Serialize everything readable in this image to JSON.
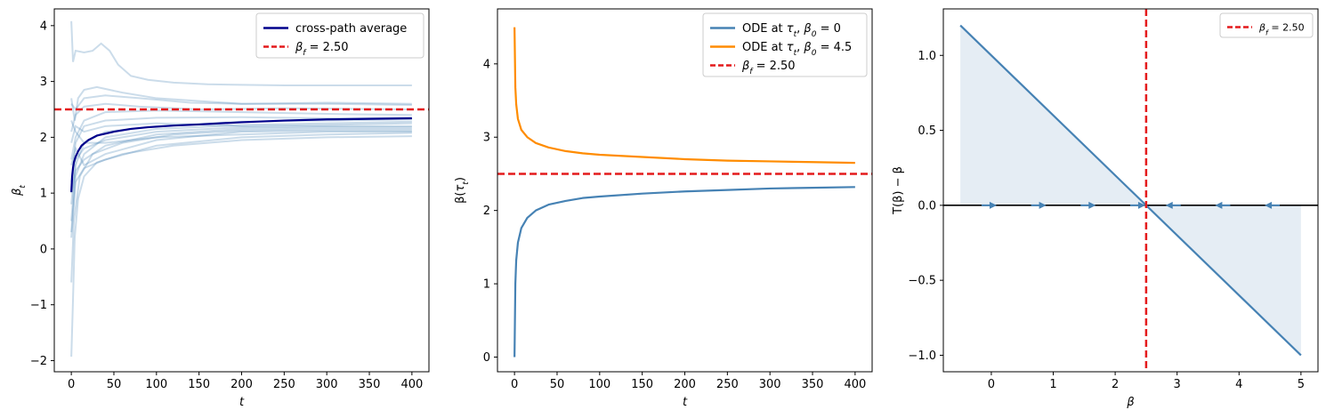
{
  "chart_data": [
    {
      "type": "line",
      "xlabel": "t",
      "ylabel": "β_t",
      "xlim": [
        -20,
        420
      ],
      "ylim": [
        -2.2,
        4.3
      ],
      "xticks": [
        0,
        50,
        100,
        150,
        200,
        250,
        300,
        350,
        400
      ],
      "yticks": [
        -2,
        -1,
        0,
        1,
        2,
        3,
        4
      ],
      "grid": false,
      "legend_position": "top-right",
      "hline": {
        "y": 2.5,
        "label": "β_f = 2.50",
        "color": "#e41a1c",
        "style": "dashed"
      },
      "sample_paths": {
        "color": "#4682b4",
        "paths": [
          [
            [
              0,
              4.08
            ],
            [
              2,
              3.35
            ],
            [
              5,
              3.55
            ],
            [
              15,
              3.52
            ],
            [
              25,
              3.55
            ],
            [
              35,
              3.68
            ],
            [
              45,
              3.55
            ],
            [
              55,
              3.3
            ],
            [
              70,
              3.1
            ],
            [
              90,
              3.03
            ],
            [
              120,
              2.98
            ],
            [
              160,
              2.95
            ],
            [
              200,
              2.94
            ],
            [
              250,
              2.93
            ],
            [
              300,
              2.93
            ],
            [
              350,
              2.93
            ],
            [
              400,
              2.93
            ]
          ],
          [
            [
              0,
              2.7
            ],
            [
              4,
              2.3
            ],
            [
              8,
              2.7
            ],
            [
              15,
              2.85
            ],
            [
              30,
              2.9
            ],
            [
              60,
              2.8
            ],
            [
              100,
              2.7
            ],
            [
              150,
              2.65
            ],
            [
              200,
              2.6
            ],
            [
              300,
              2.6
            ],
            [
              400,
              2.58
            ]
          ],
          [
            [
              0,
              2.6
            ],
            [
              5,
              2.5
            ],
            [
              15,
              2.7
            ],
            [
              40,
              2.75
            ],
            [
              80,
              2.7
            ],
            [
              140,
              2.62
            ],
            [
              200,
              2.6
            ],
            [
              300,
              2.62
            ],
            [
              400,
              2.6
            ]
          ],
          [
            [
              0,
              2.1
            ],
            [
              5,
              2.4
            ],
            [
              15,
              2.55
            ],
            [
              40,
              2.6
            ],
            [
              80,
              2.55
            ],
            [
              150,
              2.5
            ],
            [
              250,
              2.52
            ],
            [
              400,
              2.5
            ]
          ],
          [
            [
              0,
              1.6
            ],
            [
              5,
              2.0
            ],
            [
              15,
              2.3
            ],
            [
              40,
              2.45
            ],
            [
              100,
              2.48
            ],
            [
              200,
              2.45
            ],
            [
              300,
              2.42
            ],
            [
              400,
              2.4
            ]
          ],
          [
            [
              0,
              1.2
            ],
            [
              5,
              1.9
            ],
            [
              15,
              2.2
            ],
            [
              40,
              2.3
            ],
            [
              100,
              2.35
            ],
            [
              200,
              2.36
            ],
            [
              300,
              2.34
            ],
            [
              400,
              2.35
            ]
          ],
          [
            [
              0,
              0.5
            ],
            [
              5,
              1.5
            ],
            [
              15,
              1.9
            ],
            [
              40,
              2.1
            ],
            [
              100,
              2.2
            ],
            [
              200,
              2.28
            ],
            [
              300,
              2.3
            ],
            [
              400,
              2.32
            ]
          ],
          [
            [
              0,
              0.3
            ],
            [
              5,
              1.3
            ],
            [
              15,
              1.7
            ],
            [
              40,
              2.0
            ],
            [
              100,
              2.15
            ],
            [
              200,
              2.22
            ],
            [
              300,
              2.25
            ],
            [
              400,
              2.28
            ]
          ],
          [
            [
              0,
              1.9
            ],
            [
              5,
              2.2
            ],
            [
              15,
              2.1
            ],
            [
              40,
              2.2
            ],
            [
              100,
              2.25
            ],
            [
              200,
              2.2
            ],
            [
              300,
              2.22
            ],
            [
              400,
              2.25
            ]
          ],
          [
            [
              0,
              0.8
            ],
            [
              5,
              1.6
            ],
            [
              15,
              1.8
            ],
            [
              40,
              1.95
            ],
            [
              100,
              2.1
            ],
            [
              200,
              2.18
            ],
            [
              300,
              2.2
            ],
            [
              400,
              2.2
            ]
          ],
          [
            [
              0,
              1.0
            ],
            [
              5,
              1.4
            ],
            [
              15,
              1.6
            ],
            [
              40,
              1.85
            ],
            [
              100,
              2.05
            ],
            [
              200,
              2.15
            ],
            [
              300,
              2.18
            ],
            [
              400,
              2.18
            ]
          ],
          [
            [
              0,
              -0.6
            ],
            [
              3,
              0.5
            ],
            [
              10,
              1.3
            ],
            [
              25,
              1.7
            ],
            [
              60,
              1.9
            ],
            [
              120,
              2.05
            ],
            [
              200,
              2.12
            ],
            [
              300,
              2.15
            ],
            [
              400,
              2.15
            ]
          ],
          [
            [
              0,
              1.5
            ],
            [
              5,
              1.8
            ],
            [
              15,
              1.5
            ],
            [
              40,
              1.7
            ],
            [
              100,
              1.95
            ],
            [
              200,
              2.1
            ],
            [
              300,
              2.12
            ],
            [
              400,
              2.12
            ]
          ],
          [
            [
              0,
              0.2
            ],
            [
              5,
              1.2
            ],
            [
              15,
              1.45
            ],
            [
              40,
              1.6
            ],
            [
              100,
              1.85
            ],
            [
              200,
              2.0
            ],
            [
              300,
              2.05
            ],
            [
              400,
              2.08
            ]
          ],
          [
            [
              0,
              -1.93
            ],
            [
              2,
              -0.9
            ],
            [
              4,
              0.2
            ],
            [
              8,
              0.9
            ],
            [
              15,
              1.3
            ],
            [
              30,
              1.55
            ],
            [
              60,
              1.7
            ],
            [
              120,
              1.85
            ],
            [
              200,
              1.95
            ],
            [
              300,
              2.0
            ],
            [
              400,
              2.02
            ]
          ],
          [
            [
              0,
              2.3
            ],
            [
              5,
              2.1
            ],
            [
              15,
              1.9
            ],
            [
              40,
              1.9
            ],
            [
              100,
              2.0
            ],
            [
              200,
              2.05
            ],
            [
              300,
              2.1
            ],
            [
              400,
              2.1
            ]
          ]
        ]
      },
      "series": [
        {
          "name": "cross-path average",
          "color": "#00008b",
          "points": [
            [
              0,
              1.02
            ],
            [
              1,
              1.3
            ],
            [
              2,
              1.45
            ],
            [
              3,
              1.55
            ],
            [
              5,
              1.65
            ],
            [
              8,
              1.75
            ],
            [
              12,
              1.85
            ],
            [
              20,
              1.95
            ],
            [
              30,
              2.03
            ],
            [
              50,
              2.1
            ],
            [
              70,
              2.15
            ],
            [
              90,
              2.18
            ],
            [
              120,
              2.21
            ],
            [
              150,
              2.23
            ],
            [
              200,
              2.27
            ],
            [
              250,
              2.3
            ],
            [
              300,
              2.32
            ],
            [
              350,
              2.33
            ],
            [
              400,
              2.34
            ]
          ]
        }
      ]
    },
    {
      "type": "line",
      "xlabel": "t",
      "ylabel": "β(τ_t)",
      "xlim": [
        -20,
        420
      ],
      "ylim": [
        -0.2,
        4.75
      ],
      "xticks": [
        0,
        50,
        100,
        150,
        200,
        250,
        300,
        350,
        400
      ],
      "yticks": [
        0,
        1,
        2,
        3,
        4
      ],
      "grid": false,
      "legend_position": "top-right",
      "hline": {
        "y": 2.5,
        "label": "β_f = 2.50",
        "color": "#e41a1c",
        "style": "dashed"
      },
      "series": [
        {
          "name": "ODE at τ_t, β_0 = 0",
          "color": "#4682b4",
          "points": [
            [
              0,
              0.0
            ],
            [
              1,
              1.0
            ],
            [
              2,
              1.32
            ],
            [
              4,
              1.56
            ],
            [
              8,
              1.76
            ],
            [
              15,
              1.9
            ],
            [
              25,
              2.0
            ],
            [
              40,
              2.08
            ],
            [
              60,
              2.13
            ],
            [
              80,
              2.17
            ],
            [
              100,
              2.19
            ],
            [
              150,
              2.23
            ],
            [
              200,
              2.26
            ],
            [
              250,
              2.28
            ],
            [
              300,
              2.3
            ],
            [
              350,
              2.31
            ],
            [
              400,
              2.32
            ]
          ]
        },
        {
          "name": "ODE at τ_t, β_0 = 4.5",
          "color": "#ff8c00",
          "points": [
            [
              0,
              4.5
            ],
            [
              1,
              3.68
            ],
            [
              2,
              3.45
            ],
            [
              4,
              3.25
            ],
            [
              8,
              3.1
            ],
            [
              15,
              3.0
            ],
            [
              25,
              2.92
            ],
            [
              40,
              2.86
            ],
            [
              60,
              2.81
            ],
            [
              80,
              2.78
            ],
            [
              100,
              2.76
            ],
            [
              150,
              2.73
            ],
            [
              200,
              2.7
            ],
            [
              250,
              2.68
            ],
            [
              300,
              2.67
            ],
            [
              350,
              2.66
            ],
            [
              400,
              2.65
            ]
          ]
        }
      ]
    },
    {
      "type": "line",
      "xlabel": "β",
      "ylabel": "T(β) − β",
      "xlim": [
        -0.775,
        5.275
      ],
      "ylim": [
        -1.11,
        1.31
      ],
      "xticks": [
        0,
        1,
        2,
        3,
        4,
        5
      ],
      "yticks": [
        -1.0,
        -0.5,
        0.0,
        0.5,
        1.0
      ],
      "grid": false,
      "legend_position": "top-right",
      "vline": {
        "x": 2.5,
        "label": "β_f = 2.50",
        "color": "#e41a1c",
        "style": "dashed"
      },
      "hline_zero": {
        "y": 0,
        "color": "#000000"
      },
      "series": [
        {
          "name": "",
          "color": "#4682b4",
          "points": [
            [
              -0.5,
              1.2
            ],
            [
              5.0,
              -1.0
            ]
          ],
          "fill_to_zero": true
        }
      ],
      "flow_arrows": [
        {
          "x": 0.0,
          "direction": "right"
        },
        {
          "x": 0.8,
          "direction": "right"
        },
        {
          "x": 1.6,
          "direction": "right"
        },
        {
          "x": 2.4,
          "direction": "right"
        },
        {
          "x": 2.9,
          "direction": "left"
        },
        {
          "x": 3.7,
          "direction": "left"
        },
        {
          "x": 4.5,
          "direction": "left"
        }
      ]
    }
  ],
  "labels": {
    "ax1_ylabel": "β_t",
    "ax2_ylabel": "β(τ_t)",
    "ax3_ylabel": "T(β) − β",
    "ax1_xlabel": "t",
    "ax2_xlabel": "t",
    "ax3_xlabel": "β",
    "ax1_legend_avg": "cross-path average",
    "ax1_legend_bf": "β_f = 2.50",
    "ax2_legend_a": "ODE at τ_t, β_0 = 0",
    "ax2_legend_b": "ODE at τ_t, β_0 = 4.5",
    "ax2_legend_bf": "β_f = 2.50",
    "ax3_legend_bf": "β_f = 2.50"
  }
}
